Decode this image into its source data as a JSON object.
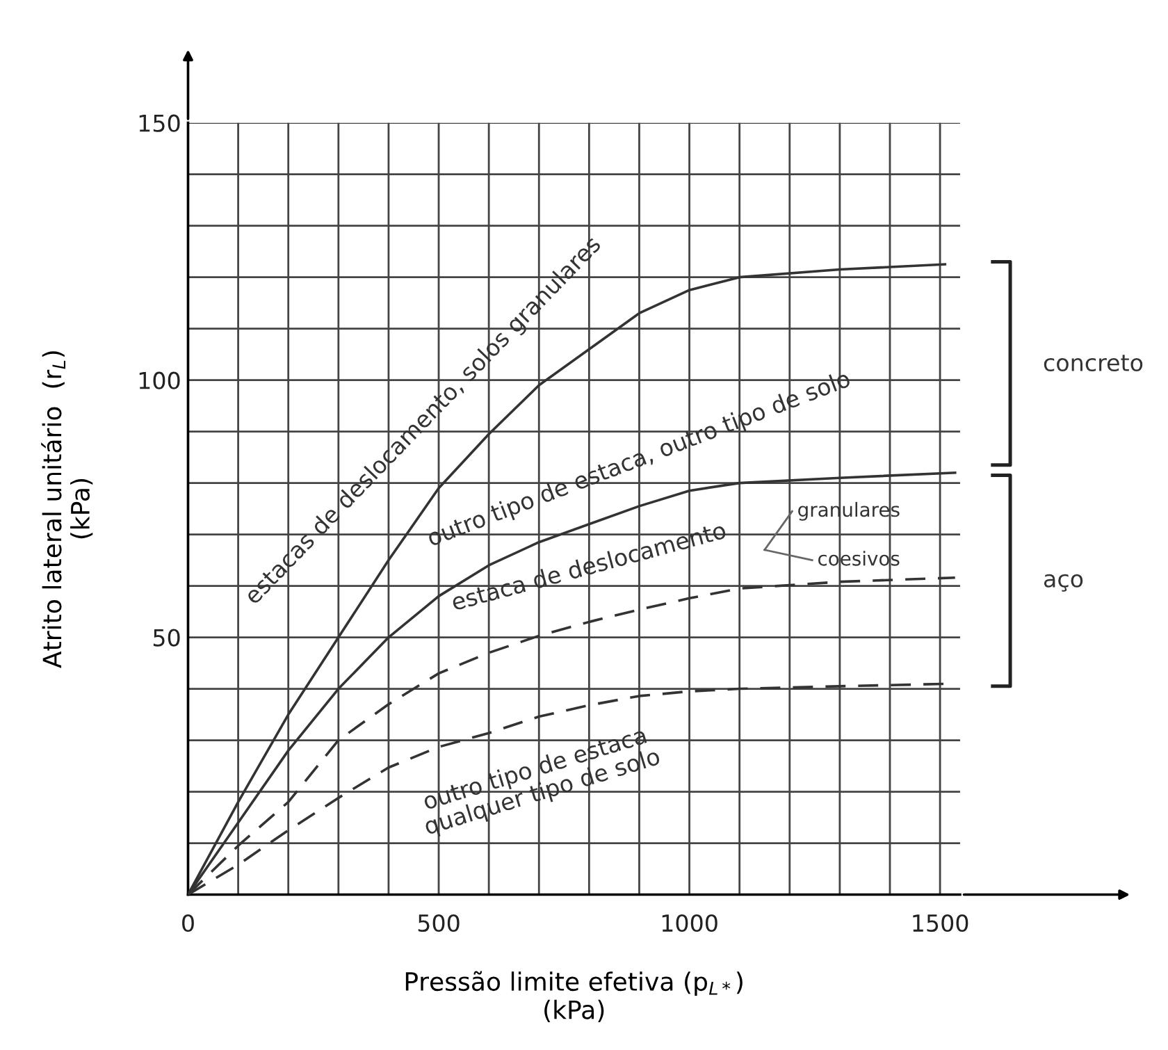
{
  "chart_data": {
    "type": "line",
    "xlabel": "Pressão limite efetiva (p$_{L*}$)\n(kPa)",
    "ylabel": "Atrito lateral unitário  (r$_{L}$)\n(kPa)",
    "xlim": [
      0,
      1540
    ],
    "ylim": [
      0,
      150
    ],
    "xticks": [
      0,
      {
        "value": 100,
        "label": null
      },
      {
        "value": 200,
        "label": null
      },
      {
        "value": 300,
        "label": null
      },
      {
        "value": 400,
        "label": null
      },
      500,
      {
        "value": 600,
        "label": null
      },
      {
        "value": 700,
        "label": null
      },
      {
        "value": 800,
        "label": null
      },
      {
        "value": 900,
        "label": null
      },
      1000,
      {
        "value": 1100,
        "label": null
      },
      {
        "value": 1200,
        "label": null
      },
      {
        "value": 1300,
        "label": null
      },
      {
        "value": 1400,
        "label": null
      },
      1500
    ],
    "yticks": [
      {
        "value": 0,
        "label": null
      },
      {
        "value": 10,
        "label": null
      },
      {
        "value": 20,
        "label": null
      },
      {
        "value": 30,
        "label": null
      },
      {
        "value": 40,
        "label": null
      },
      50,
      {
        "value": 60,
        "label": null
      },
      {
        "value": 70,
        "label": null
      },
      {
        "value": 80,
        "label": null
      },
      {
        "value": 90,
        "label": null
      },
      100,
      {
        "value": 110,
        "label": null
      },
      {
        "value": 120,
        "label": null
      },
      {
        "value": 130,
        "label": null
      },
      {
        "value": 140,
        "label": null
      },
      150
    ],
    "grid": true,
    "marker": "none",
    "series": [
      {
        "color": "#333333",
        "line_style": "solid",
        "x": [
          0,
          100,
          200,
          300,
          400,
          500,
          600,
          700,
          800,
          900,
          1000,
          1100,
          1300,
          1510
        ],
        "values": [
          0,
          18,
          35,
          50,
          65,
          79,
          89.5,
          99,
          106,
          113,
          117.5,
          120,
          121.5,
          122.5
        ]
      },
      {
        "color": "#333333",
        "line_style": "solid",
        "x": [
          0,
          100,
          200,
          300,
          400,
          500,
          600,
          700,
          800,
          900,
          1000,
          1100,
          1300,
          1530
        ],
        "values": [
          0,
          14,
          28,
          40,
          50,
          58,
          64,
          68.5,
          72,
          75.5,
          78.5,
          80,
          81,
          82
        ]
      },
      {
        "color": "#333333",
        "line_style": "dashed",
        "x": [
          0,
          100,
          200,
          300,
          400,
          500,
          600,
          700,
          800,
          900,
          1000,
          1100,
          1300,
          1530
        ],
        "values": [
          0,
          9.5,
          18,
          30,
          37,
          43,
          47,
          50.3,
          53,
          55.4,
          57.6,
          59.5,
          60.8,
          61.6
        ]
      },
      {
        "color": "#333333",
        "line_style": "dashed",
        "x": [
          0,
          100,
          200,
          300,
          400,
          500,
          600,
          700,
          800,
          900,
          1000,
          1100,
          1300,
          1530
        ],
        "values": [
          0,
          5.8,
          12.5,
          18.8,
          24.7,
          28.7,
          31.4,
          34.6,
          36.8,
          38.6,
          39.5,
          40,
          40.5,
          41
        ]
      }
    ],
    "annotations": [
      "estacas de deslocamento, solos granulares",
      "outro tipo de estaca, outro tipo de solo",
      "estaca de deslocamento",
      "granulares",
      "coesivos",
      "outro tipo de estaca\nqualquer tipo de solo",
      "concreto",
      "aço"
    ]
  }
}
